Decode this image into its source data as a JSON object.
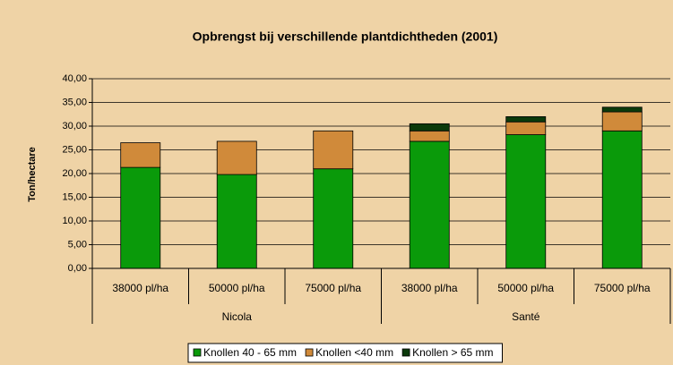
{
  "chart_data": {
    "type": "stacked_bar",
    "title": "Opbrengst bij verschillende plantdichtheden (2001)",
    "y_label": "Ton/hectare",
    "categories": [
      "38000 pl/ha",
      "50000 pl/ha",
      "75000 pl/ha",
      "38000 pl/ha",
      "50000 pl/ha",
      "75000 pl/ha"
    ],
    "groups": [
      "Nicola",
      "Santé"
    ],
    "series": [
      {
        "name": "Knollen 40 - 65 mm",
        "color": "#0a9a0a",
        "values": [
          21.3,
          19.8,
          21.0,
          26.8,
          28.2,
          29.0
        ]
      },
      {
        "name": "Knollen <40 mm",
        "color": "#d08a3a",
        "values": [
          5.2,
          7.0,
          8.0,
          2.2,
          2.7,
          4.0
        ]
      },
      {
        "name": "Knollen > 65 mm",
        "color": "#0b3a0b",
        "values": [
          0,
          0,
          0,
          1.5,
          1.1,
          1.0
        ]
      }
    ],
    "ylim": [
      0,
      40
    ],
    "yticks": [
      {
        "value": 0,
        "label": "0,00"
      },
      {
        "value": 5,
        "label": "5,00"
      },
      {
        "value": 10,
        "label": "10,00"
      },
      {
        "value": 15,
        "label": "15,00"
      },
      {
        "value": 20,
        "label": "20,00"
      },
      {
        "value": 25,
        "label": "25,00"
      },
      {
        "value": 30,
        "label": "30,00"
      },
      {
        "value": 35,
        "label": "35,00"
      },
      {
        "value": 40,
        "label": "40,00"
      }
    ],
    "grid": true,
    "legend": "bottom"
  }
}
